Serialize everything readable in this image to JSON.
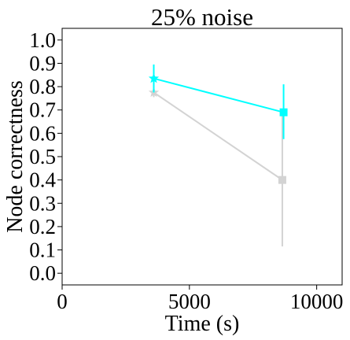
{
  "chart_data": {
    "type": "line",
    "title": "25% noise",
    "xlabel": "Time (s)",
    "ylabel": "Node correctness",
    "xlim": [
      0,
      11000
    ],
    "ylim": [
      -0.05,
      1.05
    ],
    "xticks": [
      0,
      5000,
      10000
    ],
    "xtick_labels": [
      "0",
      "5000",
      "10000"
    ],
    "yticks": [
      0.0,
      0.1,
      0.2,
      0.3,
      0.4,
      0.5,
      0.6,
      0.7,
      0.8,
      0.9,
      1.0
    ],
    "ytick_labels": [
      "0.0",
      "0.1",
      "0.2",
      "0.3",
      "0.4",
      "0.5",
      "0.6",
      "0.7",
      "0.8",
      "0.9",
      "1.0"
    ],
    "grid": false,
    "legend": "none",
    "series": [
      {
        "color": "#d3d3d3",
        "markers": [
          "star",
          "square"
        ],
        "points": [
          {
            "x": 3600,
            "y": 0.775,
            "err_low": 0.755,
            "err_high": 0.8
          },
          {
            "x": 8650,
            "y": 0.4,
            "err_low": 0.115,
            "err_high": 0.695
          }
        ]
      },
      {
        "color": "#00ffff",
        "markers": [
          "star",
          "square"
        ],
        "points": [
          {
            "x": 3600,
            "y": 0.835,
            "err_low": 0.775,
            "err_high": 0.895
          },
          {
            "x": 8700,
            "y": 0.69,
            "err_low": 0.575,
            "err_high": 0.81
          }
        ]
      }
    ]
  }
}
